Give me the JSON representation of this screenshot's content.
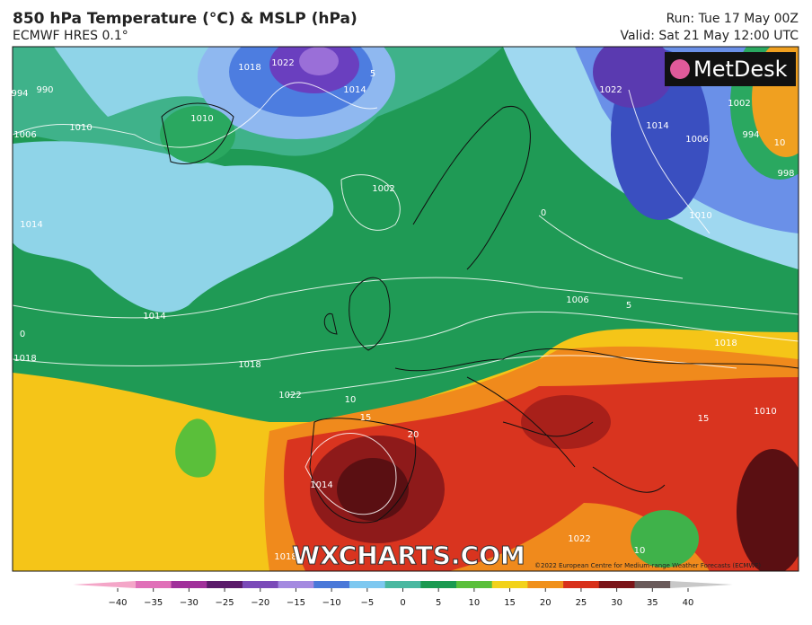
{
  "header": {
    "title": "850 hPa Temperature (°C) & MSLP (hPa)",
    "subtitle": "ECMWF HRES 0.1°",
    "run": "Run: Tue 17 May 00Z",
    "valid": "Valid: Sat 21 May 12:00 UTC"
  },
  "map": {
    "logo": "MetDesk",
    "watermark": "WXCHARTS.COM",
    "copyright": "©2022 European Centre for Medium-range Weather Forecasts (ECMWF)",
    "isobar_labels": [
      "990",
      "994",
      "1006",
      "1010",
      "1010",
      "1018",
      "1022",
      "1014",
      "1002",
      "1014",
      "1018",
      "1018",
      "1022",
      "1006",
      "1018",
      "1010",
      "1022",
      "1014",
      "1006",
      "1010",
      "1002",
      "994",
      "998",
      "1014",
      "1018",
      "1022",
      "1014"
    ],
    "isotherm_labels": [
      "5",
      "0",
      "5",
      "10",
      "15",
      "20",
      "15",
      "10",
      "10",
      "0"
    ]
  },
  "colorbar": {
    "ticks": [
      {
        "value": -40,
        "label": "−40"
      },
      {
        "value": -35,
        "label": "−35"
      },
      {
        "value": -30,
        "label": "−30"
      },
      {
        "value": -25,
        "label": "−25"
      },
      {
        "value": -20,
        "label": "−20"
      },
      {
        "value": -15,
        "label": "−15"
      },
      {
        "value": -10,
        "label": "−10"
      },
      {
        "value": -5,
        "label": "−5"
      },
      0,
      5,
      10,
      15,
      20,
      25,
      30,
      35,
      40
    ],
    "colors": [
      "#f4a6c8",
      "#e070b8",
      "#a0309a",
      "#5a1a6a",
      "#7a4ab8",
      "#a48ae0",
      "#4a78d8",
      "#7ec8f0",
      "#4ab8a0",
      "#1a9a50",
      "#5abf3a",
      "#f2d21a",
      "#f0901a",
      "#d8301a",
      "#7a1418",
      "#6a5a5a",
      "#c8c8c8"
    ]
  }
}
